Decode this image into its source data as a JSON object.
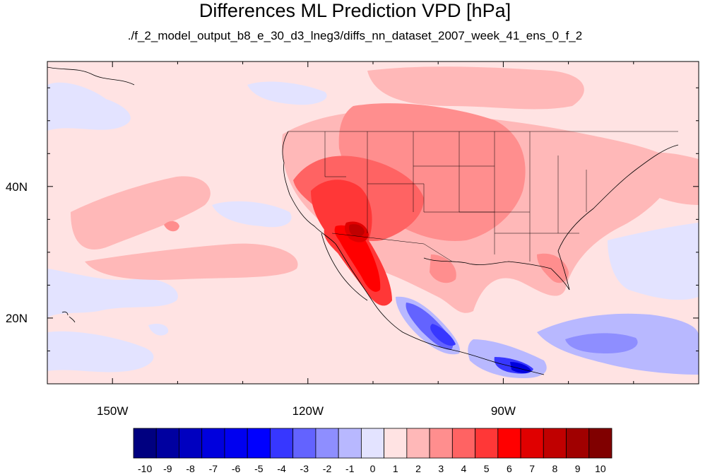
{
  "chart_data": {
    "type": "heatmap",
    "title": "Differences ML Prediction VPD [hPa]",
    "subtitle": "./f_2_model_output_b8_e_30_d3_lneg3/diffs_nn_dataset_2007_week_41_ens_0_f_2",
    "xlim": [
      -160,
      -60
    ],
    "ylim": [
      10,
      59
    ],
    "x_ticks": [
      {
        "value": -150,
        "label": "150W"
      },
      {
        "value": -120,
        "label": "120W"
      },
      {
        "value": -90,
        "label": "90W"
      }
    ],
    "y_ticks": [
      {
        "value": 40,
        "label": "40N"
      },
      {
        "value": 20,
        "label": "20N"
      }
    ],
    "colorbar": {
      "levels": [
        "-10",
        "-9",
        "-8",
        "-7",
        "-6",
        "-5",
        "-4",
        "-3",
        "-2",
        "-1",
        "0",
        "1",
        "2",
        "3",
        "4",
        "5",
        "6",
        "7",
        "8",
        "9",
        "10"
      ],
      "colors": [
        "#000080",
        "#0000a0",
        "#0000c0",
        "#0000dd",
        "#0000f0",
        "#0000ff",
        "#3737ff",
        "#6363ff",
        "#8e8eff",
        "#b8b8ff",
        "#e3e3ff",
        "#ffe3e3",
        "#ffb8b8",
        "#ff8e8e",
        "#ff6363",
        "#ff3737",
        "#ff0000",
        "#e00000",
        "#c00000",
        "#a00000",
        "#800000"
      ]
    },
    "regions": [
      {
        "name": "background",
        "value": 0.5
      },
      {
        "name": "central-pacific-negative",
        "value": -0.5
      },
      {
        "name": "subtropical-pacific-positive",
        "value": 1.5
      },
      {
        "name": "united-states-positive",
        "value": 2.0
      },
      {
        "name": "southwest-us-positive",
        "value": 4.5
      },
      {
        "name": "baja-sonora-peak",
        "value": 7.5
      },
      {
        "name": "mexico-pacific-coast-negative",
        "value": -3.5
      },
      {
        "name": "central-america-negative",
        "value": -4.0
      },
      {
        "name": "caribbean-negative",
        "value": -1.5
      }
    ]
  }
}
